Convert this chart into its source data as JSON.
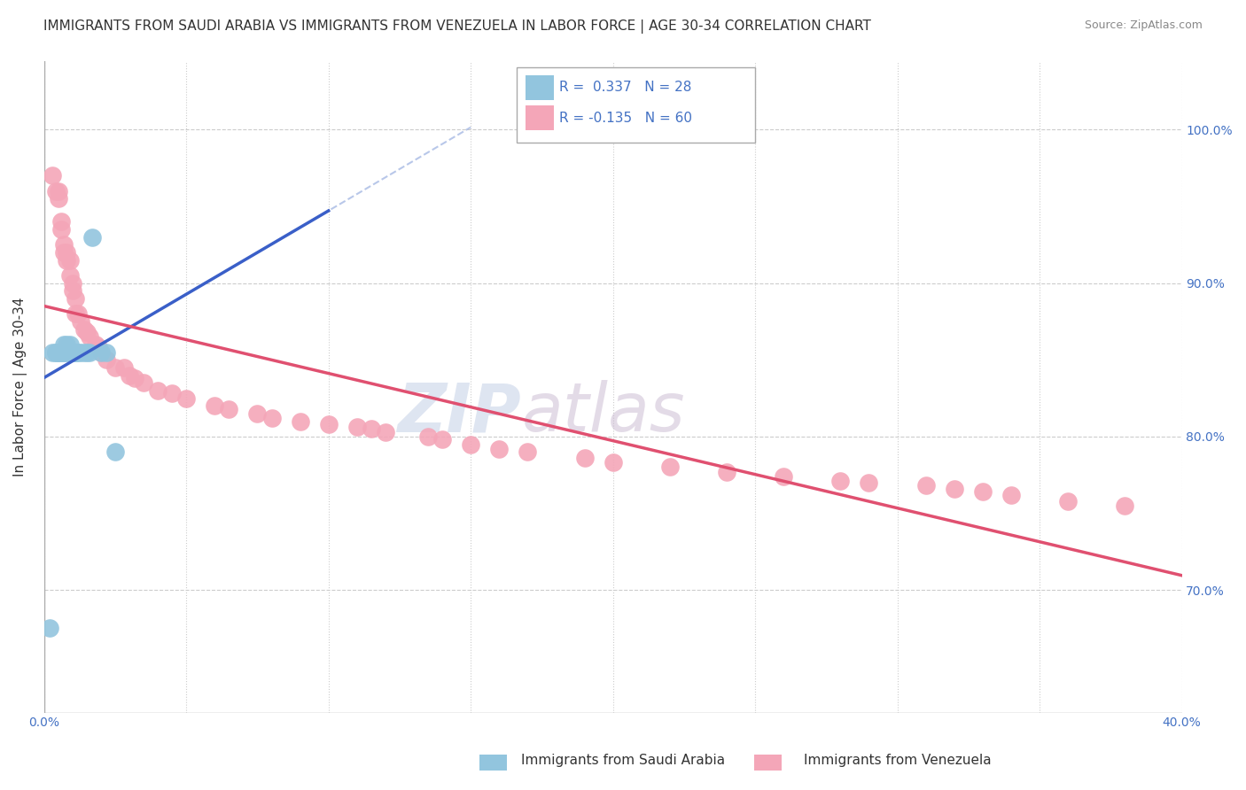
{
  "title": "IMMIGRANTS FROM SAUDI ARABIA VS IMMIGRANTS FROM VENEZUELA IN LABOR FORCE | AGE 30-34 CORRELATION CHART",
  "source": "Source: ZipAtlas.com",
  "ylabel": "In Labor Force | Age 30-34",
  "xlim": [
    0.0,
    0.4
  ],
  "ylim": [
    0.62,
    1.045
  ],
  "xticks": [
    0.0,
    0.05,
    0.1,
    0.15,
    0.2,
    0.25,
    0.3,
    0.35,
    0.4
  ],
  "xtick_labels": [
    "0.0%",
    "",
    "",
    "",
    "",
    "",
    "",
    "",
    "40.0%"
  ],
  "ytick_positions": [
    0.7,
    0.8,
    0.9,
    1.0
  ],
  "ytick_labels": [
    "70.0%",
    "80.0%",
    "90.0%",
    "100.0%"
  ],
  "saudi_color": "#92c5de",
  "venezuela_color": "#f4a6b8",
  "saudi_line_color": "#3a5fc8",
  "venezuela_line_color": "#e05070",
  "saudi_line_dash_color": "#9bb0e0",
  "R_saudi": 0.337,
  "N_saudi": 28,
  "R_venezuela": -0.135,
  "N_venezuela": 60,
  "saudi_x": [
    0.002,
    0.003,
    0.004,
    0.004,
    0.005,
    0.005,
    0.006,
    0.006,
    0.007,
    0.007,
    0.007,
    0.008,
    0.008,
    0.009,
    0.009,
    0.01,
    0.01,
    0.011,
    0.011,
    0.012,
    0.013,
    0.014,
    0.015,
    0.016,
    0.017,
    0.02,
    0.022,
    0.025
  ],
  "saudi_y": [
    0.675,
    0.855,
    0.855,
    0.855,
    0.855,
    0.855,
    0.855,
    0.855,
    0.855,
    0.855,
    0.86,
    0.855,
    0.86,
    0.86,
    0.855,
    0.855,
    0.855,
    0.855,
    0.855,
    0.855,
    0.855,
    0.855,
    0.855,
    0.855,
    0.93,
    0.855,
    0.855,
    0.79
  ],
  "venezuela_x": [
    0.003,
    0.004,
    0.005,
    0.005,
    0.006,
    0.006,
    0.007,
    0.007,
    0.008,
    0.008,
    0.009,
    0.009,
    0.01,
    0.01,
    0.011,
    0.011,
    0.012,
    0.013,
    0.014,
    0.015,
    0.016,
    0.018,
    0.019,
    0.02,
    0.022,
    0.025,
    0.028,
    0.03,
    0.032,
    0.035,
    0.04,
    0.045,
    0.05,
    0.06,
    0.065,
    0.075,
    0.08,
    0.09,
    0.1,
    0.11,
    0.115,
    0.12,
    0.135,
    0.14,
    0.15,
    0.16,
    0.17,
    0.19,
    0.2,
    0.22,
    0.24,
    0.26,
    0.28,
    0.29,
    0.31,
    0.32,
    0.33,
    0.34,
    0.36,
    0.38
  ],
  "venezuela_y": [
    0.97,
    0.96,
    0.96,
    0.955,
    0.94,
    0.935,
    0.925,
    0.92,
    0.92,
    0.915,
    0.915,
    0.905,
    0.9,
    0.895,
    0.89,
    0.88,
    0.88,
    0.875,
    0.87,
    0.868,
    0.865,
    0.86,
    0.858,
    0.855,
    0.85,
    0.845,
    0.845,
    0.84,
    0.838,
    0.835,
    0.83,
    0.828,
    0.825,
    0.82,
    0.818,
    0.815,
    0.812,
    0.81,
    0.808,
    0.806,
    0.805,
    0.803,
    0.8,
    0.798,
    0.795,
    0.792,
    0.79,
    0.786,
    0.783,
    0.78,
    0.777,
    0.774,
    0.771,
    0.77,
    0.768,
    0.766,
    0.764,
    0.762,
    0.758,
    0.755
  ],
  "watermark_zip": "ZIP",
  "watermark_atlas": "atlas",
  "watermark_color_zip": "#c8d4e8",
  "watermark_color_atlas": "#c8b8d0",
  "background_color": "#ffffff",
  "grid_color": "#cccccc",
  "title_fontsize": 11,
  "axis_label_fontsize": 11,
  "tick_fontsize": 10
}
